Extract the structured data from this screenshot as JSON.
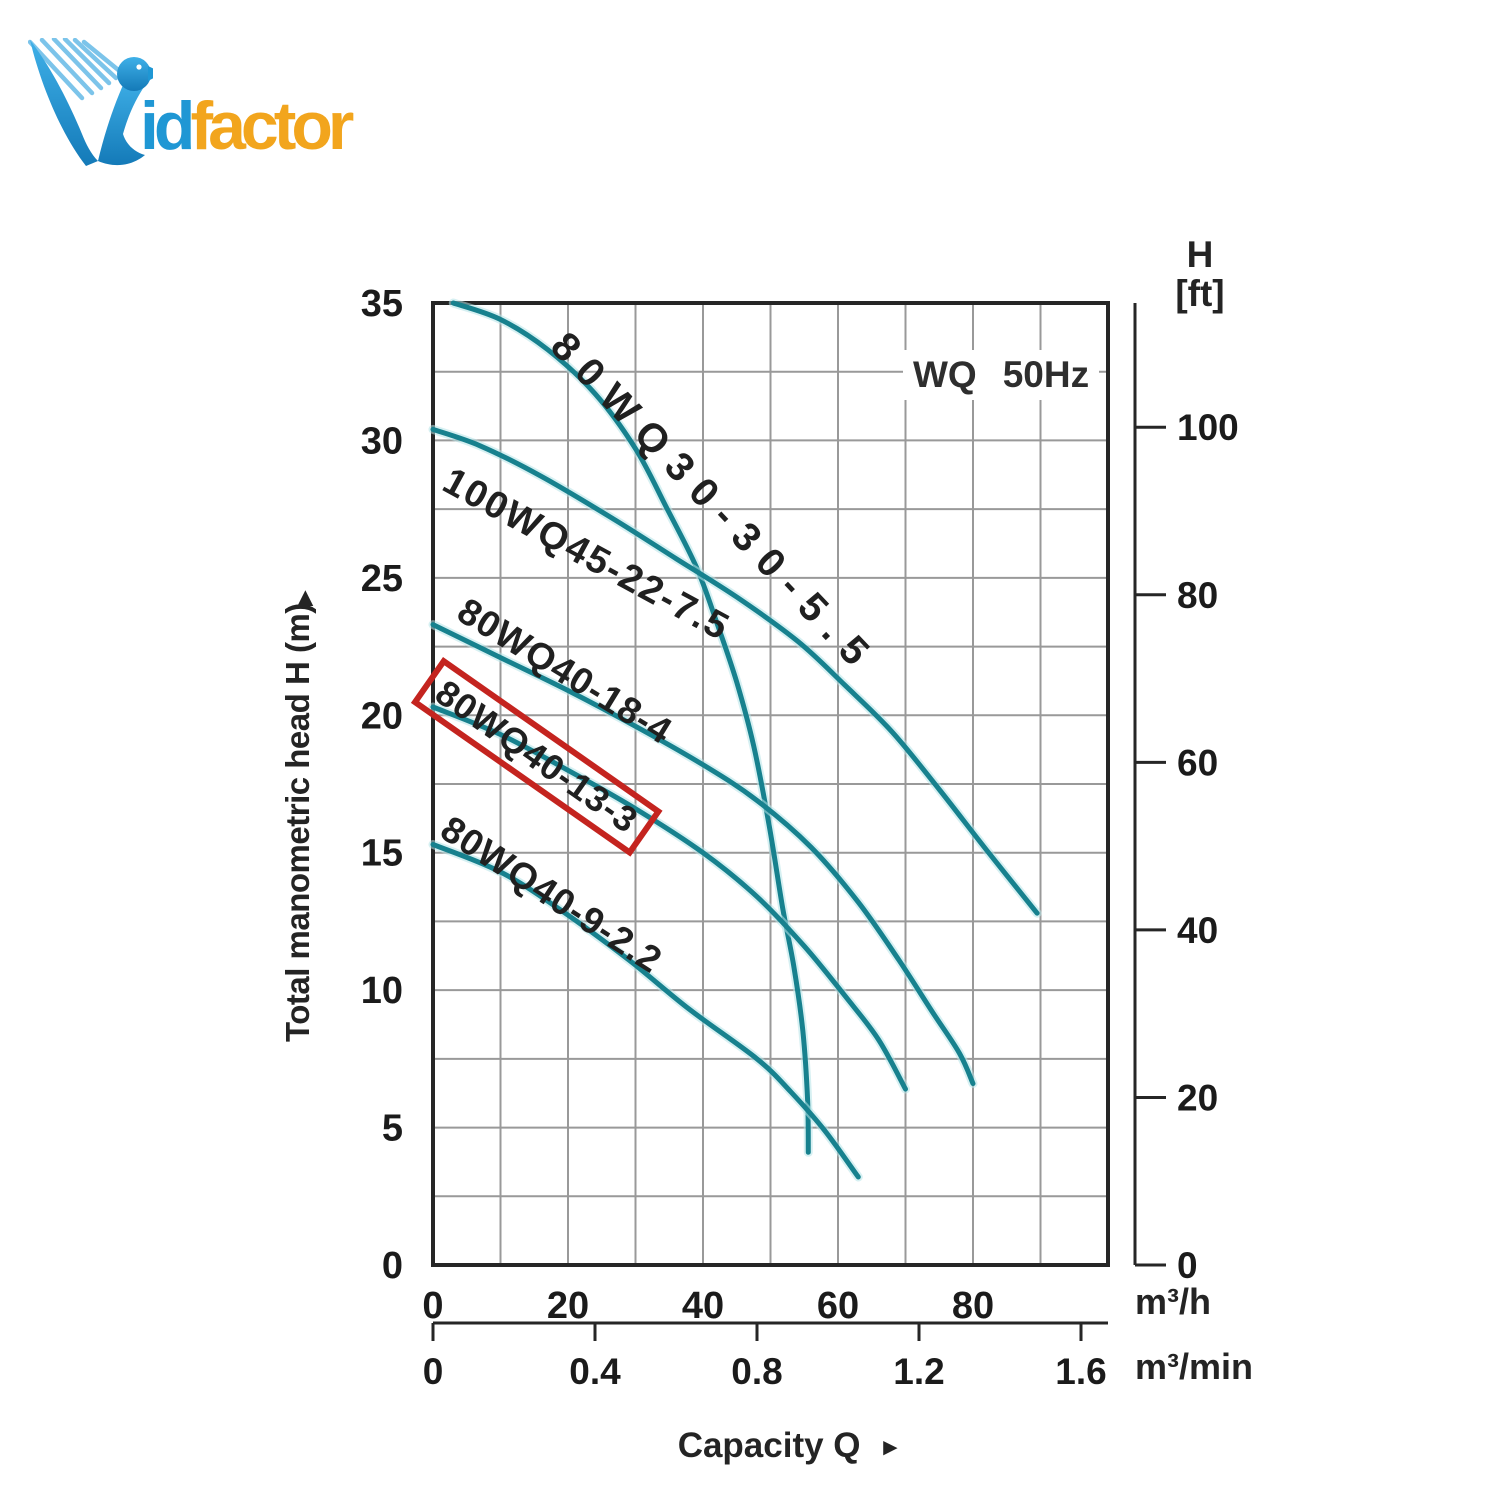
{
  "logo": {
    "brand_prefix": "id",
    "brand_suffix": "factor",
    "bird_color_top": "#3fb0e8",
    "bird_color_bottom": "#147ab8",
    "prefix_color": "#1f97d4",
    "suffix_color": "#f2a51d"
  },
  "badge": {
    "family": "WQ",
    "frequency": "50Hz"
  },
  "chart_data": {
    "type": "line",
    "title": "WQ 50Hz",
    "xlabel": "Capacity Q",
    "ylabel": "Total manometric head H (m)",
    "x_title_arrow": "►",
    "y_title_arrow": "▲",
    "grid": true,
    "curve_color": "#17818e",
    "curve_halo_color": "#b4e4e8",
    "grid_color": "#999999",
    "frame_color": "#262626",
    "highlight_box_color": "#c4241f",
    "x_axis": {
      "unit": "m³/h",
      "range": [
        0,
        100
      ],
      "ticks": [
        0,
        20,
        40,
        60,
        80
      ],
      "grid_step": 10
    },
    "x_axis_secondary": {
      "unit": "m³/min",
      "ticks": [
        "0",
        "0.4",
        "0.8",
        "1.2",
        "1.6"
      ],
      "scale_factor_to_m3h": 60
    },
    "y_axis": {
      "unit": "m",
      "range": [
        0,
        35
      ],
      "ticks": [
        0,
        5,
        10,
        15,
        20,
        25,
        30,
        35
      ],
      "grid_step": 2.5
    },
    "y_axis_right": {
      "label_line1": "H",
      "label_line2": "[ft]",
      "ticks": [
        0,
        20,
        40,
        60,
        80,
        100
      ],
      "meters_per_foot": 0.3048
    },
    "series": [
      {
        "name": "80WQ30-30-5.5",
        "highlighted": false,
        "points": [
          [
            3,
            35
          ],
          [
            10,
            34.4
          ],
          [
            17,
            33.3
          ],
          [
            24,
            31.7
          ],
          [
            30,
            29.7
          ],
          [
            34.5,
            27.6
          ],
          [
            39,
            25.4
          ],
          [
            42,
            23.4
          ],
          [
            45,
            21.2
          ],
          [
            47.5,
            18.9
          ],
          [
            49.8,
            16.0
          ],
          [
            51.8,
            13.0
          ],
          [
            53.5,
            10.8
          ],
          [
            54.8,
            8.5
          ],
          [
            55.5,
            6.0
          ],
          [
            55.6,
            4.1
          ]
        ]
      },
      {
        "name": "100WQ45-22-7.5",
        "highlighted": false,
        "points": [
          [
            0,
            30.4
          ],
          [
            7,
            29.8
          ],
          [
            16,
            28.7
          ],
          [
            27,
            27.1
          ],
          [
            36,
            25.7
          ],
          [
            45,
            24.3
          ],
          [
            54,
            22.7
          ],
          [
            61,
            21.1
          ],
          [
            68,
            19.4
          ],
          [
            75,
            17.3
          ],
          [
            82,
            15.1
          ],
          [
            89.5,
            12.8
          ]
        ]
      },
      {
        "name": "80WQ40-18-4",
        "highlighted": false,
        "points": [
          [
            0,
            23.3
          ],
          [
            10,
            22.1
          ],
          [
            20,
            20.9
          ],
          [
            30,
            19.6
          ],
          [
            40,
            18.2
          ],
          [
            48,
            16.9
          ],
          [
            56,
            15.2
          ],
          [
            63,
            13.2
          ],
          [
            69,
            11.1
          ],
          [
            74,
            9.2
          ],
          [
            78,
            7.7
          ],
          [
            80,
            6.6
          ]
        ]
      },
      {
        "name": "80WQ40-13-3",
        "highlighted": true,
        "points": [
          [
            0,
            20.3
          ],
          [
            10,
            19.3
          ],
          [
            20,
            18.0
          ],
          [
            30,
            16.6
          ],
          [
            40,
            15.0
          ],
          [
            48,
            13.4
          ],
          [
            55,
            11.6
          ],
          [
            61,
            9.8
          ],
          [
            66,
            8.2
          ],
          [
            70,
            6.4
          ]
        ]
      },
      {
        "name": "80WQ40-9-2.2",
        "highlighted": false,
        "points": [
          [
            0,
            15.3
          ],
          [
            10,
            14.3
          ],
          [
            19,
            12.9
          ],
          [
            29,
            11.1
          ],
          [
            38,
            9.3
          ],
          [
            48,
            7.5
          ],
          [
            53,
            6.3
          ],
          [
            58,
            4.9
          ],
          [
            63,
            3.2
          ]
        ]
      }
    ]
  }
}
